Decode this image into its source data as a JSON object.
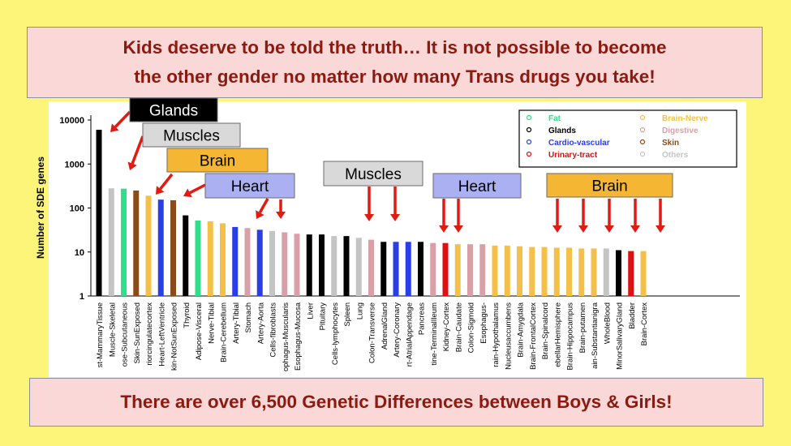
{
  "banner_top": {
    "line1": "Kids deserve to be told the truth… It is not possible to become",
    "line2": "the other gender no matter how many Trans drugs you take!"
  },
  "banner_bottom": {
    "text": "There are over 6,500 Genetic Differences between Boys & Girls!"
  },
  "callouts": [
    {
      "label": "Glands",
      "bg": "#000000",
      "fg": "#ffffff"
    },
    {
      "label": "Muscles",
      "bg": "#d9d9d9",
      "fg": "#000000"
    },
    {
      "label": "Brain",
      "bg": "#f5b733",
      "fg": "#000000"
    },
    {
      "label": "Heart",
      "bg": "#aab0f2",
      "fg": "#000000"
    },
    {
      "label": "Muscles",
      "bg": "#d9d9d9",
      "fg": "#000000"
    },
    {
      "label": "Heart",
      "bg": "#aab0f2",
      "fg": "#000000"
    },
    {
      "label": "Brain",
      "bg": "#f5b733",
      "fg": "#000000"
    }
  ],
  "colors": {
    "arrow": "#e11a12",
    "Fat": "#2fe08a",
    "Glands": "#000000",
    "Cardio-vascular": "#2a3ee8",
    "Urinary-tract": "#dd1111",
    "Brain-Nerve": "#f5c04a",
    "Digestive": "#d9a0a8",
    "Skin": "#8b4a1a",
    "Others": "#c4c4c4"
  },
  "chart_data": {
    "type": "bar",
    "ylabel": "Number of SDE genes",
    "yscale": "log",
    "ylim": [
      1,
      10000
    ],
    "yticks": [
      "1",
      "10",
      "100",
      "1000",
      "10000"
    ],
    "legend": {
      "position": "top-right",
      "entries": [
        "Fat",
        "Glands",
        "Cardio-vascular",
        "Urinary-tract",
        "Brain-Nerve",
        "Digestive",
        "Skin",
        "Others"
      ]
    },
    "categories": [
      "st-MammaryTissue",
      "Muscle-Skeletal",
      "ose-Subcutaneous",
      "Skin-SunExposed",
      "riorcingulatecortex",
      "Heart-LeftVentricle",
      "kin-NotSunExposed",
      "Thyroid",
      "Adipose-Visceral",
      "Nerve-Tibial",
      "Brain-Cerebellum",
      "Artery-Tibial",
      "Stomach",
      "Artery-Aorta",
      "Cells-fibroblasts",
      "ophagus-Muscularis",
      "Esophagus-Mucosa",
      "Liver",
      "Pituitary",
      "Cells-lymphocytes",
      "Spleen",
      "Lung",
      "Colon-Transverse",
      "AdrenalGland",
      "Artery-Coronary",
      "rt-AtrialAppendage",
      "Pancreas",
      "tine-TerminalIleum",
      "Kidney-Cortex",
      "Brain-Caudate",
      "Colon-Sigmoid",
      "Esophagus-",
      "rain-Hypothalamus",
      "Nucleusaccumbens",
      "Brain-Amygdala",
      "Brain-FrontalCortex",
      "Brain-Spinalcord",
      "ebellarHemisphere",
      "Brain-Hippocampus",
      "Brain-putamen",
      "ain-Substantianigra",
      "WholeBlood",
      "MinorSalivaryGland",
      "Bladder",
      "Brain-Cortex"
    ],
    "values": [
      6000,
      280,
      275,
      250,
      190,
      155,
      150,
      68,
      52,
      50,
      45,
      37,
      35,
      32,
      30,
      28,
      26,
      25,
      25,
      23,
      23,
      21,
      19,
      17,
      17,
      17,
      17,
      16,
      16,
      15,
      15,
      15,
      14,
      14,
      13.5,
      13,
      13,
      12.5,
      12.5,
      12,
      12,
      12,
      11,
      10.5,
      10.5
    ],
    "groups": [
      "Glands",
      "Others",
      "Fat",
      "Skin",
      "Brain-Nerve",
      "Cardio-vascular",
      "Skin",
      "Glands",
      "Fat",
      "Brain-Nerve",
      "Brain-Nerve",
      "Cardio-vascular",
      "Digestive",
      "Cardio-vascular",
      "Others",
      "Digestive",
      "Digestive",
      "Glands",
      "Glands",
      "Others",
      "Glands",
      "Others",
      "Digestive",
      "Glands",
      "Cardio-vascular",
      "Cardio-vascular",
      "Glands",
      "Digestive",
      "Urinary-tract",
      "Brain-Nerve",
      "Digestive",
      "Digestive",
      "Brain-Nerve",
      "Brain-Nerve",
      "Brain-Nerve",
      "Brain-Nerve",
      "Brain-Nerve",
      "Brain-Nerve",
      "Brain-Nerve",
      "Brain-Nerve",
      "Brain-Nerve",
      "Others",
      "Glands",
      "Urinary-tract",
      "Brain-Nerve"
    ]
  }
}
